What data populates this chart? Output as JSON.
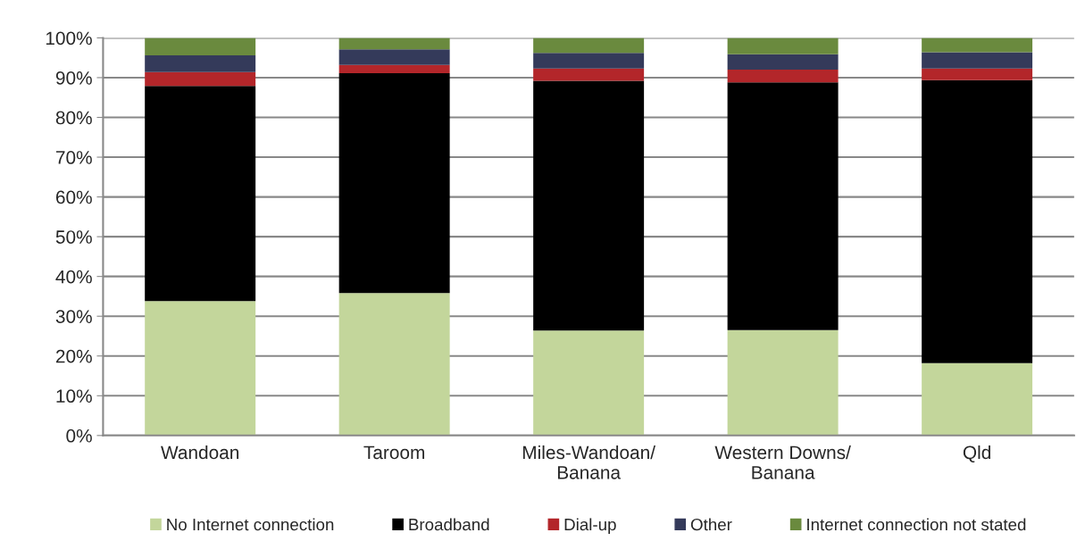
{
  "chart_data": {
    "type": "bar",
    "stacked": true,
    "categories": [
      "Wandoan",
      "Taroom",
      "Miles-Wandoan/\nBanana",
      "Western Downs/\nBanana",
      "Qld"
    ],
    "series": [
      {
        "name": "No Internet connection",
        "color": "#c3d69b",
        "values": [
          33.8,
          35.8,
          26.4,
          26.5,
          18.2
        ]
      },
      {
        "name": "Broadband",
        "color": "#000000",
        "values": [
          54.1,
          55.3,
          62.8,
          62.3,
          71.2
        ]
      },
      {
        "name": "Dial-up",
        "color": "#b3262a",
        "values": [
          3.5,
          2.1,
          3.1,
          3.2,
          2.9
        ]
      },
      {
        "name": "Other",
        "color": "#343a5a",
        "values": [
          4.2,
          3.9,
          3.9,
          3.9,
          4.1
        ]
      },
      {
        "name": "Internet connection not stated",
        "color": "#6a8a3e",
        "values": [
          4.4,
          2.9,
          3.8,
          4.1,
          3.6
        ]
      }
    ],
    "ylim": [
      0,
      100
    ],
    "yticks": [
      {
        "value": 0,
        "label": "0%"
      },
      {
        "value": 10,
        "label": "10%"
      },
      {
        "value": 20,
        "label": "20%"
      },
      {
        "value": 30,
        "label": "30%"
      },
      {
        "value": 40,
        "label": "40%"
      },
      {
        "value": 50,
        "label": "50%"
      },
      {
        "value": 60,
        "label": "60%"
      },
      {
        "value": 70,
        "label": "70%"
      },
      {
        "value": 80,
        "label": "80%"
      },
      {
        "value": 90,
        "label": "90%"
      },
      {
        "value": 100,
        "label": "100%"
      }
    ],
    "grid": "y",
    "legend": "bottom"
  }
}
